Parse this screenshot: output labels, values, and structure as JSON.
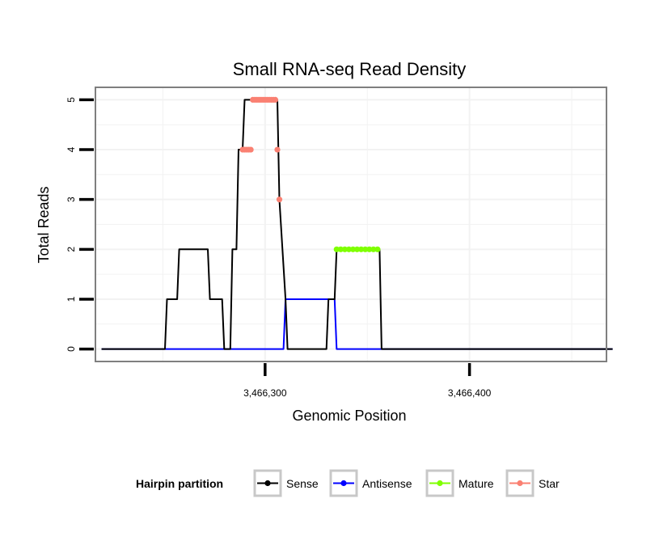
{
  "chart_data": {
    "type": "line",
    "title": "Small RNA-seq Read Density",
    "xlabel": "Genomic Position",
    "ylabel": "Total Reads",
    "xlim": [
      3466217,
      3466467
    ],
    "ylim": [
      -0.25,
      5.25
    ],
    "xticks": [
      {
        "value": 3466300,
        "label": "3,466,300"
      },
      {
        "value": 3466400,
        "label": "3,466,400"
      }
    ],
    "yticks": [
      {
        "value": 0,
        "label": "0"
      },
      {
        "value": 1,
        "label": "1"
      },
      {
        "value": 2,
        "label": "2"
      },
      {
        "value": 3,
        "label": "3"
      },
      {
        "value": 4,
        "label": "4"
      },
      {
        "value": 5,
        "label": "5"
      }
    ],
    "grid": true,
    "legend": {
      "title": "Hairpin partition",
      "position": "bottom",
      "items": [
        {
          "name": "Sense",
          "color": "#000000"
        },
        {
          "name": "Antisense",
          "color": "#0000ff"
        },
        {
          "name": "Mature",
          "color": "#7fff00"
        },
        {
          "name": "Star",
          "color": "#fa8072"
        }
      ]
    },
    "series": [
      {
        "name": "Sense",
        "color": "#000000",
        "style": "line",
        "x": [
          3466220,
          3466251,
          3466252,
          3466257,
          3466258,
          3466272,
          3466273,
          3466279,
          3466280,
          3466283,
          3466284,
          3466286,
          3466287,
          3466289,
          3466290,
          3466295,
          3466296,
          3466306,
          3466307,
          3466310,
          3466311,
          3466330,
          3466331,
          3466334,
          3466335,
          3466356,
          3466357,
          3466470
        ],
        "y": [
          0,
          0,
          1,
          1,
          2,
          2,
          1,
          1,
          0,
          0,
          2,
          2,
          4,
          4,
          5,
          5,
          5,
          5,
          3,
          1,
          0,
          0,
          1,
          1,
          2,
          2,
          0,
          0
        ]
      },
      {
        "name": "Antisense",
        "color": "#0000ff",
        "style": "line",
        "x": [
          3466220,
          3466309,
          3466310,
          3466334,
          3466335,
          3466470
        ],
        "y": [
          0,
          0,
          1,
          1,
          0,
          0
        ]
      },
      {
        "name": "Mature",
        "color": "#7fff00",
        "style": "points",
        "x": [
          3466335,
          3466337,
          3466339,
          3466341,
          3466343,
          3466345,
          3466347,
          3466349,
          3466351,
          3466353,
          3466355
        ],
        "y": [
          2,
          2,
          2,
          2,
          2,
          2,
          2,
          2,
          2,
          2,
          2
        ]
      },
      {
        "name": "Star",
        "color": "#fa8072",
        "style": "points",
        "x": [
          3466289,
          3466290,
          3466291,
          3466292,
          3466293,
          3466294,
          3466295,
          3466296,
          3466297,
          3466298,
          3466299,
          3466300,
          3466301,
          3466302,
          3466303,
          3466304,
          3466305,
          3466306,
          3466307
        ],
        "y": [
          4,
          4,
          4,
          4,
          4,
          5,
          5,
          5,
          5,
          5,
          5,
          5,
          5,
          5,
          5,
          5,
          5,
          4,
          3
        ]
      }
    ]
  }
}
